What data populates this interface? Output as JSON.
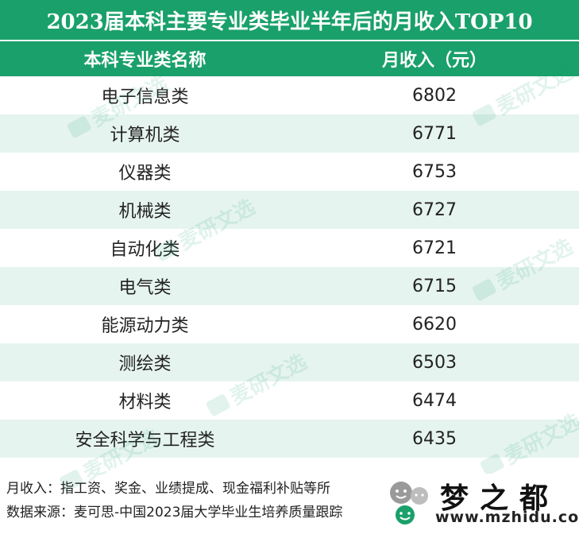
{
  "title": "2023届本科主要专业类毕业半年后的月收入TOP10",
  "header": {
    "col1": "本科专业类名称",
    "col2": "月收入（元）"
  },
  "rows": [
    {
      "name": "电子信息类",
      "value": "6802"
    },
    {
      "name": "计算机类",
      "value": "6771"
    },
    {
      "name": "仪器类",
      "value": "6753"
    },
    {
      "name": "机械类",
      "value": "6727"
    },
    {
      "name": "自动化类",
      "value": "6721"
    },
    {
      "name": "电气类",
      "value": "6715"
    },
    {
      "name": "能源动力类",
      "value": "6620"
    },
    {
      "name": "测绘类",
      "value": "6503"
    },
    {
      "name": "材料类",
      "value": "6474"
    },
    {
      "name": "安全科学与工程类",
      "value": "6435"
    }
  ],
  "footnotes": {
    "note1": "月收入：指工资、奖金、业绩提成、现金福利补贴等所",
    "note2": "数据来源：麦可思-中国2023届大学毕业生培养质量跟踪"
  },
  "watermark": {
    "text": "麦研文选"
  },
  "brand": {
    "name": "梦之都",
    "url": "www.mzhidu.com"
  },
  "colors": {
    "header_green": "#1aa06a",
    "stripe": "#e6f4ef"
  }
}
